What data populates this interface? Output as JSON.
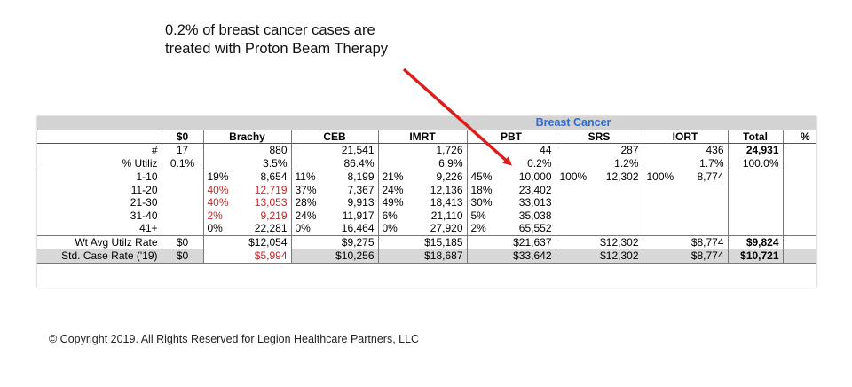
{
  "annotation": {
    "line1": "0.2% of breast cancer cases are",
    "line2": "treated with Proton Beam Therapy"
  },
  "copyright": "© Copyright 2019.  All Rights Reserved for Legion Healthcare Partners, LLC",
  "colors": {
    "title_blue": "#2b6ad8",
    "red_text": "#c62828",
    "arrow_red": "#e01b1b",
    "band_gray": "#d3d3d3"
  },
  "table": {
    "title": "Breast Cancer",
    "headers": {
      "zero": "$0",
      "brachy": "Brachy",
      "ceb": "CEB",
      "imrt": "IMRT",
      "pbt": "PBT",
      "srs": "SRS",
      "iort": "IORT",
      "total": "Total",
      "extra": "%"
    },
    "count_row": {
      "label": "#",
      "zero": "17",
      "brachy": "880",
      "ceb": "21,541",
      "imrt": "1,726",
      "pbt": "44",
      "srs": "287",
      "iort": "436",
      "total": "24,931"
    },
    "util_row": {
      "label": "% Utiliz",
      "zero": "0.1%",
      "brachy": "3.5%",
      "ceb": "86.4%",
      "imrt": "6.9%",
      "pbt": "0.2%",
      "srs": "1.2%",
      "iort": "1.7%",
      "total": "100.0%"
    },
    "fraction_rows": [
      {
        "label": "1-10",
        "b_pct": "19%",
        "b_val": "8,654",
        "c_pct": "11%",
        "c_val": "8,199",
        "i_pct": "21%",
        "i_val": "9,226",
        "p_pct": "45%",
        "p_val": "10,000",
        "s_pct": "100%",
        "s_val": "12,302",
        "o_pct": "100%",
        "o_val": "8,774"
      },
      {
        "label": "11-20",
        "b_pct": "40%",
        "b_val": "12,719",
        "c_pct": "37%",
        "c_val": "7,367",
        "i_pct": "24%",
        "i_val": "12,136",
        "p_pct": "18%",
        "p_val": "23,402"
      },
      {
        "label": "21-30",
        "b_pct": "40%",
        "b_val": "13,053",
        "c_pct": "28%",
        "c_val": "9,913",
        "i_pct": "49%",
        "i_val": "18,413",
        "p_pct": "30%",
        "p_val": "33,013"
      },
      {
        "label": "31-40",
        "b_pct": "2%",
        "b_val": "9,219",
        "c_pct": "24%",
        "c_val": "11,917",
        "i_pct": "6%",
        "i_val": "21,110",
        "p_pct": "5%",
        "p_val": "35,038"
      },
      {
        "label": "41+",
        "b_pct": "0%",
        "b_val": "22,281",
        "c_pct": "0%",
        "c_val": "16,464",
        "i_pct": "0%",
        "i_val": "27,920",
        "p_pct": "2%",
        "p_val": "65,552"
      }
    ],
    "wt_row": {
      "label": "Wt Avg Utilz Rate",
      "zero": "$0",
      "brachy": "$12,054",
      "ceb": "$9,275",
      "imrt": "$15,185",
      "pbt": "$21,637",
      "srs": "$12,302",
      "iort": "$8,774",
      "total": "$9,824"
    },
    "std_row": {
      "label": "Std. Case Rate ('19)",
      "zero": "$0",
      "brachy": "$5,994",
      "ceb": "$10,256",
      "imrt": "$18,687",
      "pbt": "$33,642",
      "srs": "$12,302",
      "iort": "$8,774",
      "total": "$10,721"
    }
  }
}
